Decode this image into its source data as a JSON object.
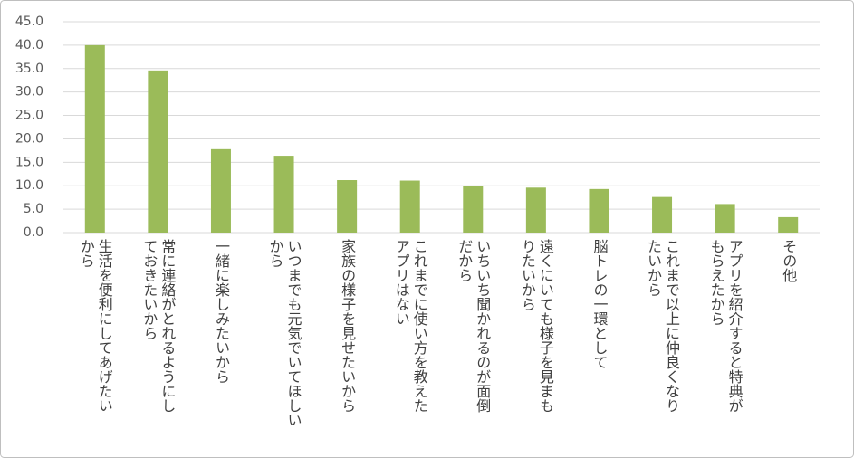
{
  "chart_data": {
    "type": "bar",
    "categories": [
      "生活を便利にしてあげたい\nから",
      "常に連絡がとれるようにし\nておきたいから",
      "一緒に楽しみたいから",
      "いつまでも元気でいてほしい\nから",
      "家族の様子を見せたいから",
      "これまでに使い方を教えた\nアプリはない",
      "いちいち聞かれるのが面倒\nだから",
      "遠くにいても様子を見まも\nりたいから",
      "脳トレの一環として",
      "これまで以上に仲良くなり\nたいから",
      "アプリを紹介すると特典が\nもらえたから",
      "その他"
    ],
    "values": [
      40.0,
      34.6,
      17.8,
      16.4,
      11.2,
      11.1,
      10.0,
      9.6,
      9.3,
      7.6,
      6.1,
      3.3
    ],
    "color": "#9bbb59",
    "ylim": [
      0,
      45
    ],
    "yticks": [
      {
        "value": 0,
        "label": "0.0"
      },
      {
        "value": 5,
        "label": "5.0"
      },
      {
        "value": 10,
        "label": "10.0"
      },
      {
        "value": 15,
        "label": "15.0"
      },
      {
        "value": 20,
        "label": "20.0"
      },
      {
        "value": 25,
        "label": "25.0"
      },
      {
        "value": 30,
        "label": "30.0"
      },
      {
        "value": 35,
        "label": "35.0"
      },
      {
        "value": 40,
        "label": "40.0"
      },
      {
        "value": 45,
        "label": "45.0"
      }
    ],
    "grid": true
  }
}
